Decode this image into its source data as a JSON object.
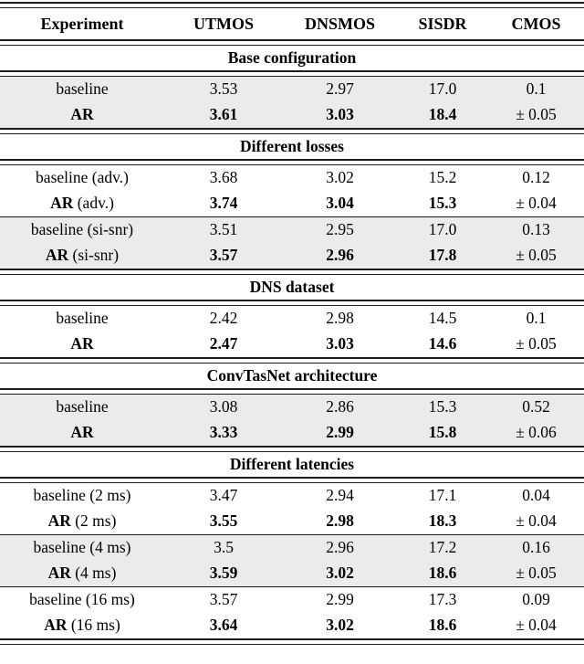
{
  "colors": {
    "row_shade": "#ebebeb",
    "rule": "#1c1c1c",
    "background": "#ffffff",
    "text": "#000000"
  },
  "table": {
    "columns": [
      "Experiment",
      "UTMOS",
      "DNSMOS",
      "SISDR",
      "CMOS"
    ],
    "sections": [
      {
        "title": "Base configuration",
        "groups": [
          {
            "shaded": true,
            "rows": [
              {
                "label_main": "baseline",
                "label_suffix": "",
                "bold": false,
                "values": [
                  "3.53",
                  "2.97",
                  "17.0"
                ],
                "cmos": "0.1"
              },
              {
                "label_main": "AR",
                "label_suffix": "",
                "bold": true,
                "values": [
                  "3.61",
                  "3.03",
                  "18.4"
                ],
                "cmos": "± 0.05"
              }
            ]
          }
        ]
      },
      {
        "title": "Different losses",
        "groups": [
          {
            "shaded": false,
            "rows": [
              {
                "label_main": "baseline",
                "label_suffix": " (adv.)",
                "bold": false,
                "values": [
                  "3.68",
                  "3.02",
                  "15.2"
                ],
                "cmos": "0.12"
              },
              {
                "label_main": "AR",
                "label_suffix": " (adv.)",
                "bold": true,
                "values": [
                  "3.74",
                  "3.04",
                  "15.3"
                ],
                "cmos": "± 0.04"
              }
            ]
          },
          {
            "shaded": true,
            "rows": [
              {
                "label_main": "baseline",
                "label_suffix": " (si-snr)",
                "bold": false,
                "values": [
                  "3.51",
                  "2.95",
                  "17.0"
                ],
                "cmos": "0.13"
              },
              {
                "label_main": "AR",
                "label_suffix": " (si-snr)",
                "bold": true,
                "values": [
                  "3.57",
                  "2.96",
                  "17.8"
                ],
                "cmos": "± 0.05"
              }
            ]
          }
        ]
      },
      {
        "title": "DNS dataset",
        "groups": [
          {
            "shaded": false,
            "rows": [
              {
                "label_main": "baseline",
                "label_suffix": "",
                "bold": false,
                "values": [
                  "2.42",
                  "2.98",
                  "14.5"
                ],
                "cmos": "0.1"
              },
              {
                "label_main": "AR",
                "label_suffix": "",
                "bold": true,
                "values": [
                  "2.47",
                  "3.03",
                  "14.6"
                ],
                "cmos": "± 0.05"
              }
            ]
          }
        ]
      },
      {
        "title": "ConvTasNet architecture",
        "groups": [
          {
            "shaded": true,
            "rows": [
              {
                "label_main": "baseline",
                "label_suffix": "",
                "bold": false,
                "values": [
                  "3.08",
                  "2.86",
                  "15.3"
                ],
                "cmos": "0.52"
              },
              {
                "label_main": "AR",
                "label_suffix": "",
                "bold": true,
                "values": [
                  "3.33",
                  "2.99",
                  "15.8"
                ],
                "cmos": "± 0.06"
              }
            ]
          }
        ]
      },
      {
        "title": "Different latencies",
        "groups": [
          {
            "shaded": false,
            "rows": [
              {
                "label_main": "baseline",
                "label_suffix": " (2 ms)",
                "bold": false,
                "values": [
                  "3.47",
                  "2.94",
                  "17.1"
                ],
                "cmos": "0.04"
              },
              {
                "label_main": "AR",
                "label_suffix": " (2 ms)",
                "bold": true,
                "values": [
                  "3.55",
                  "2.98",
                  "18.3"
                ],
                "cmos": "± 0.04"
              }
            ]
          },
          {
            "shaded": true,
            "rows": [
              {
                "label_main": "baseline",
                "label_suffix": " (4 ms)",
                "bold": false,
                "values": [
                  "3.5",
                  "2.96",
                  "17.2"
                ],
                "cmos": "0.16"
              },
              {
                "label_main": "AR",
                "label_suffix": " (4 ms)",
                "bold": true,
                "values": [
                  "3.59",
                  "3.02",
                  "18.6"
                ],
                "cmos": "± 0.05"
              }
            ]
          },
          {
            "shaded": false,
            "rows": [
              {
                "label_main": "baseline",
                "label_suffix": " (16 ms)",
                "bold": false,
                "values": [
                  "3.57",
                  "2.99",
                  "17.3"
                ],
                "cmos": "0.09"
              },
              {
                "label_main": "AR",
                "label_suffix": " (16 ms)",
                "bold": true,
                "values": [
                  "3.64",
                  "3.02",
                  "18.6"
                ],
                "cmos": "± 0.04"
              }
            ]
          }
        ]
      }
    ]
  }
}
